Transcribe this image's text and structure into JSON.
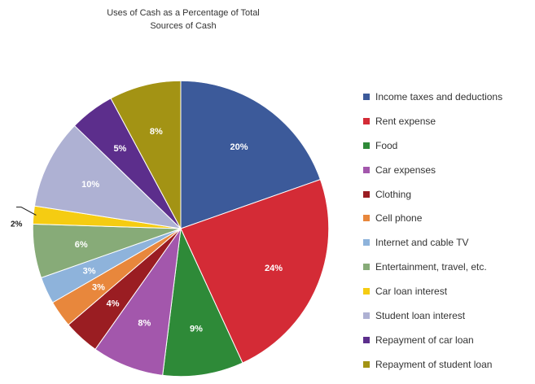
{
  "chart_data": {
    "type": "pie",
    "title": "Uses of Cash as a Percentage of Total",
    "title_line2": "Sources of Cash",
    "legend_position": "right",
    "start": "12 o'clock, clockwise",
    "slices": [
      {
        "label": "Income taxes and deductions",
        "value": 20,
        "display": "20%",
        "color": "#3c5a9a",
        "text_color": "#ffffff"
      },
      {
        "label": "Rent expense",
        "value": 24,
        "display": "24%",
        "color": "#d42b36",
        "text_color": "#ffffff"
      },
      {
        "label": "Food",
        "value": 9,
        "display": "9%",
        "color": "#2e8a38",
        "text_color": "#ffffff"
      },
      {
        "label": "Car expenses",
        "value": 8,
        "display": "8%",
        "color": "#a357ac",
        "text_color": "#ffffff"
      },
      {
        "label": "Clothing",
        "value": 4,
        "display": "4%",
        "color": "#9a1d22",
        "text_color": "#ffffff"
      },
      {
        "label": "Cell phone",
        "value": 3,
        "display": "3%",
        "color": "#e8873c",
        "text_color": "#ffffff"
      },
      {
        "label": "Internet and cable TV",
        "value": 3,
        "display": "3%",
        "color": "#8eb3db",
        "text_color": "#ffffff"
      },
      {
        "label": "Entertainment, travel, etc.",
        "value": 6,
        "display": "6%",
        "color": "#87ab78",
        "text_color": "#ffffff"
      },
      {
        "label": "Car loan interest",
        "value": 2,
        "display": "2%",
        "color": "#f5cc12",
        "text_color": "#222222",
        "callout": true
      },
      {
        "label": "Student loan interest",
        "value": 10,
        "display": "10%",
        "color": "#aeb1d3",
        "text_color": "#ffffff"
      },
      {
        "label": "Repayment of car loan",
        "value": 5,
        "display": "5%",
        "color": "#5c2e8c",
        "text_color": "#ffffff"
      },
      {
        "label": "Repayment of student loan",
        "value": 8,
        "display": "8%",
        "color": "#a39314",
        "text_color": "#ffffff"
      }
    ]
  }
}
